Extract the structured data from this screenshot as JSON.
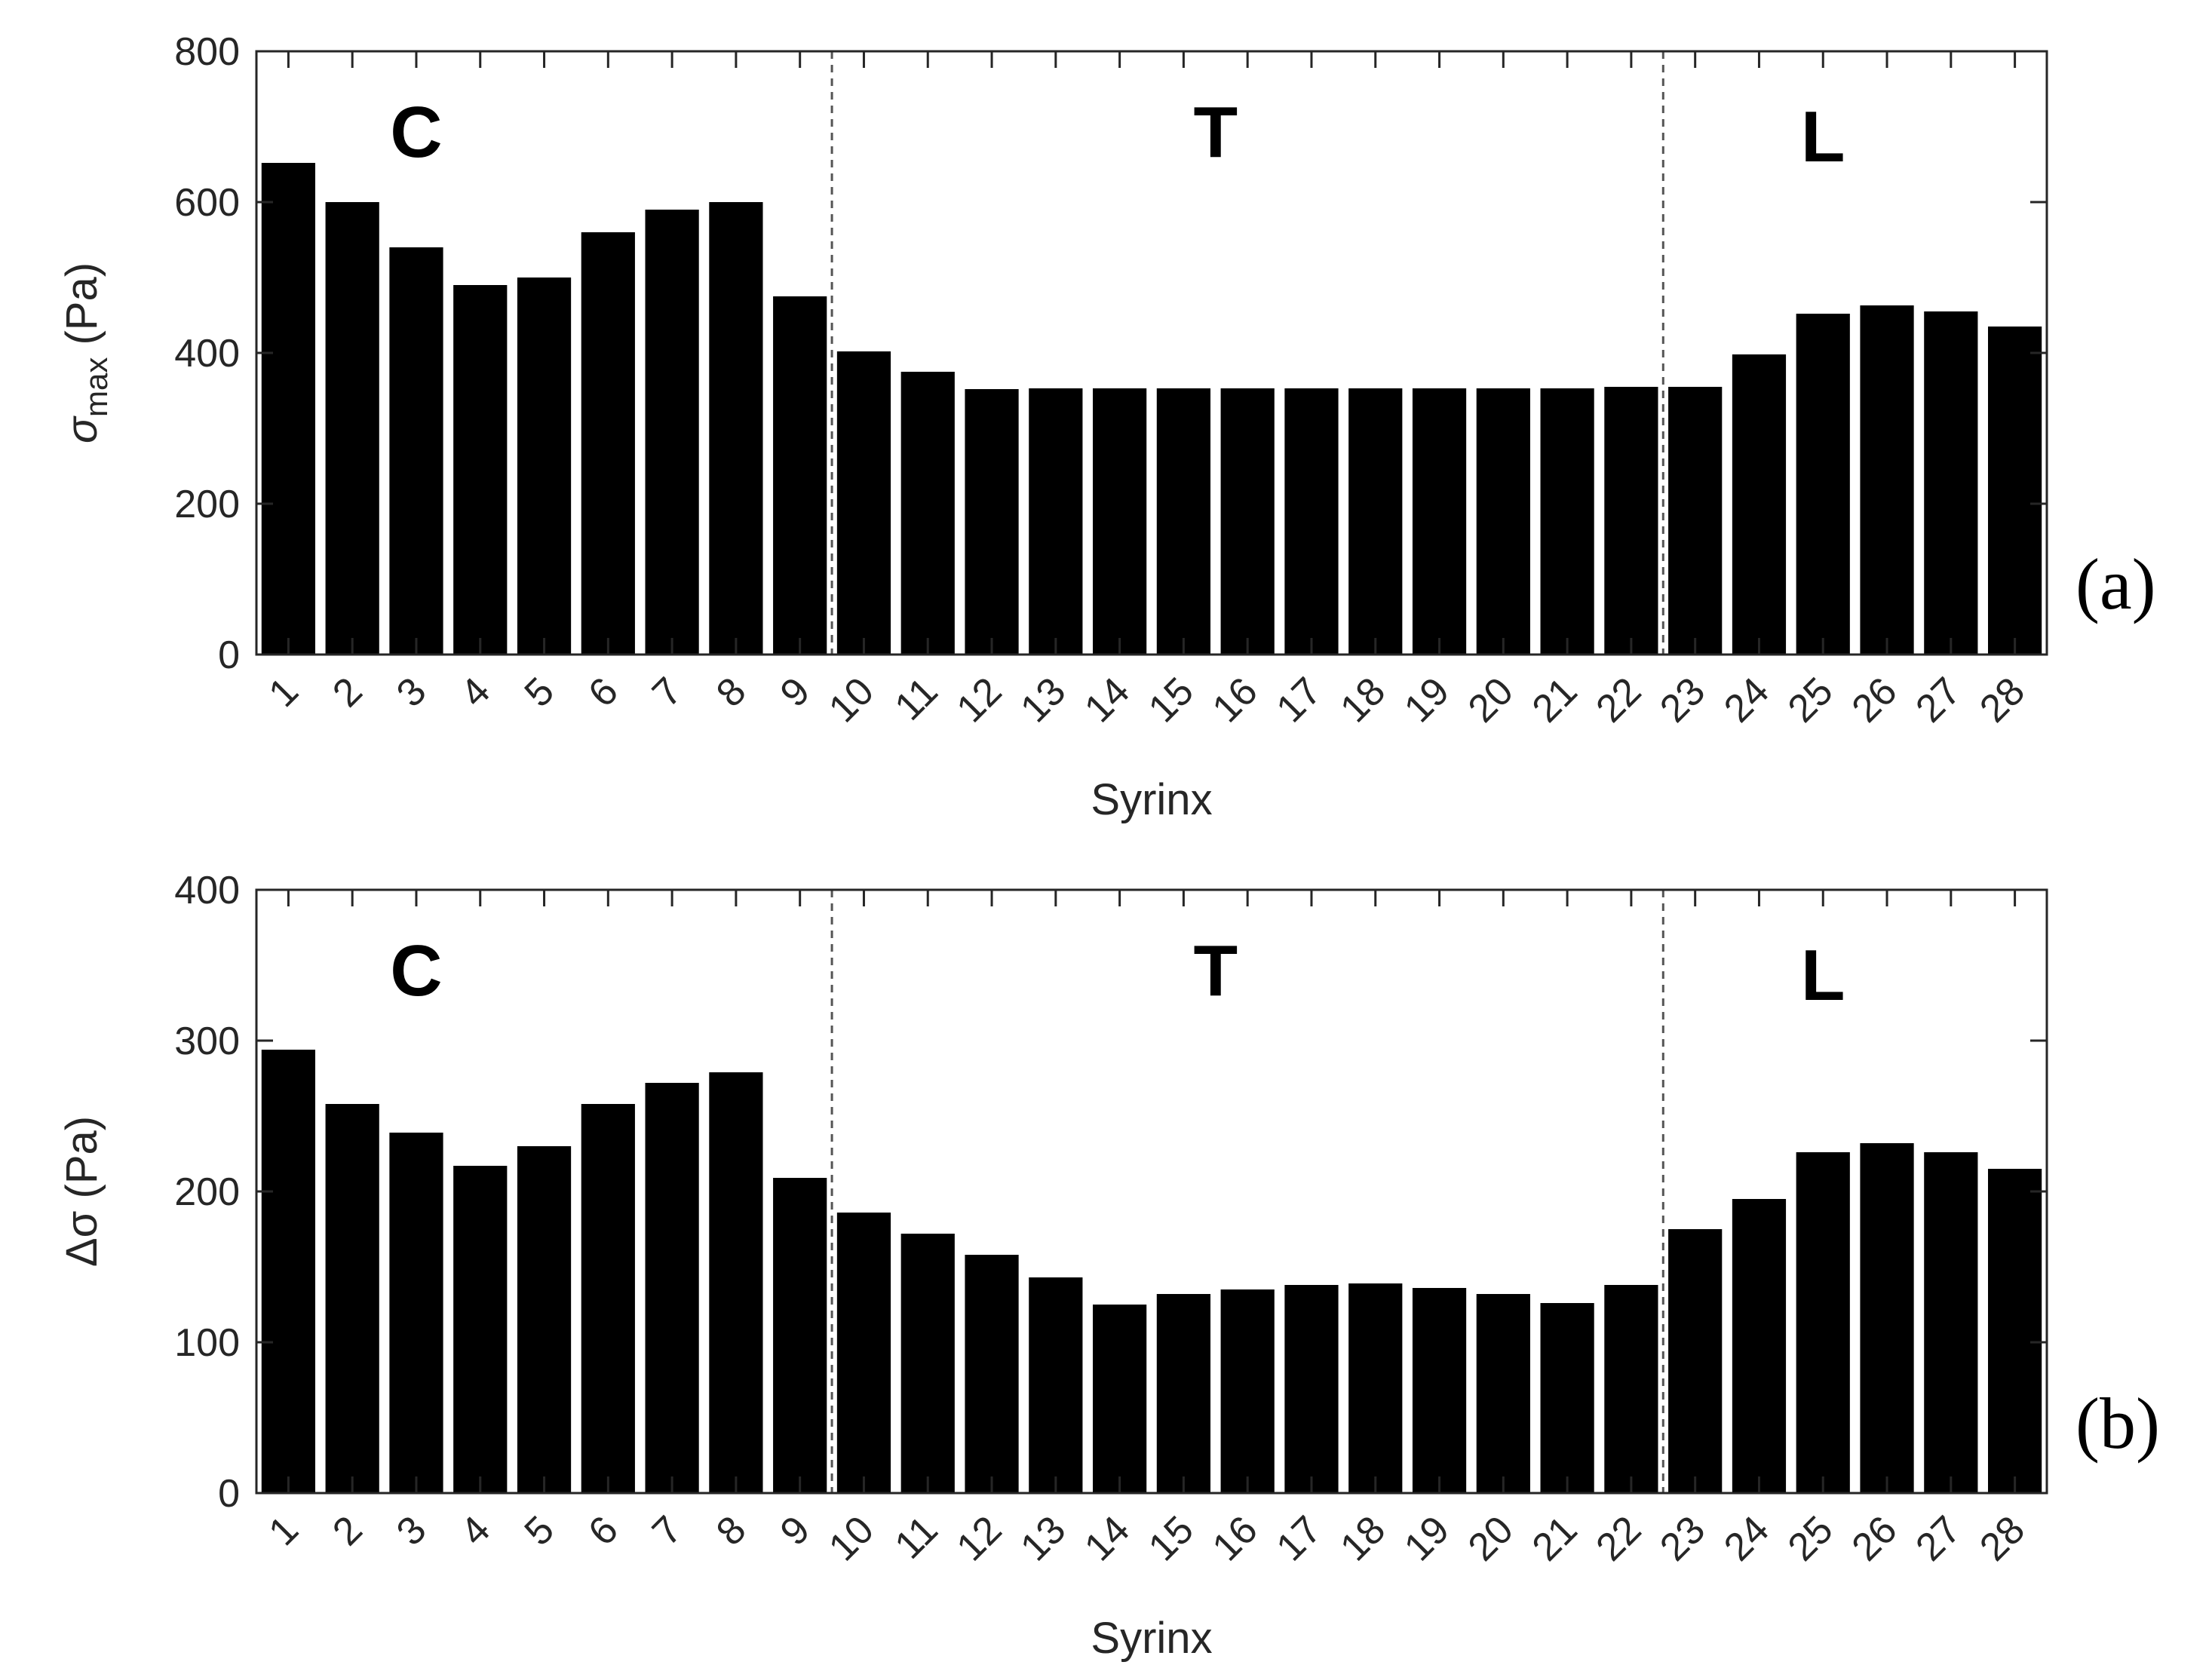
{
  "colors": {
    "bar": "#000000",
    "axis": "#262626",
    "divider": "#555555",
    "background": "#ffffff"
  },
  "chart_data": [
    {
      "type": "bar",
      "panel_label": "(a)",
      "xlabel": "Syrinx",
      "ylabel_main": "σ",
      "ylabel_sub": "max",
      "ylabel_unit": " (Pa)",
      "ylim": [
        0,
        800
      ],
      "yticks": [
        0,
        200,
        400,
        600,
        800
      ],
      "categories": [
        "1",
        "2",
        "3",
        "4",
        "5",
        "6",
        "7",
        "8",
        "9",
        "10",
        "11",
        "12",
        "13",
        "14",
        "15",
        "16",
        "17",
        "18",
        "19",
        "20",
        "21",
        "22",
        "23",
        "24",
        "25",
        "26",
        "27",
        "28"
      ],
      "values": [
        652,
        600,
        540,
        490,
        500,
        560,
        590,
        600,
        475,
        402,
        375,
        352,
        353,
        353,
        353,
        353,
        353,
        353,
        353,
        353,
        353,
        355,
        355,
        398,
        452,
        463,
        455,
        435
      ],
      "regions": [
        {
          "label": "C",
          "from": 1,
          "to": 9
        },
        {
          "label": "T",
          "from": 10,
          "to": 22
        },
        {
          "label": "L",
          "from": 23,
          "to": 28
        }
      ],
      "dividers_after": [
        9,
        22
      ],
      "grid": false
    },
    {
      "type": "bar",
      "panel_label": "(b)",
      "xlabel": "Syrinx",
      "ylabel_main": "Δσ",
      "ylabel_sub": "",
      "ylabel_unit": " (Pa)",
      "ylim": [
        0,
        400
      ],
      "yticks": [
        0,
        100,
        200,
        300,
        400
      ],
      "categories": [
        "1",
        "2",
        "3",
        "4",
        "5",
        "6",
        "7",
        "8",
        "9",
        "10",
        "11",
        "12",
        "13",
        "14",
        "15",
        "16",
        "17",
        "18",
        "19",
        "20",
        "21",
        "22",
        "23",
        "24",
        "25",
        "26",
        "27",
        "28"
      ],
      "values": [
        294,
        258,
        239,
        217,
        230,
        258,
        272,
        279,
        209,
        186,
        172,
        158,
        143,
        125,
        132,
        135,
        138,
        139,
        136,
        132,
        126,
        138,
        175,
        195,
        226,
        232,
        226,
        215
      ],
      "regions": [
        {
          "label": "C",
          "from": 1,
          "to": 9
        },
        {
          "label": "T",
          "from": 10,
          "to": 22
        },
        {
          "label": "L",
          "from": 23,
          "to": 28
        }
      ],
      "dividers_after": [
        9,
        22
      ],
      "grid": false
    }
  ]
}
